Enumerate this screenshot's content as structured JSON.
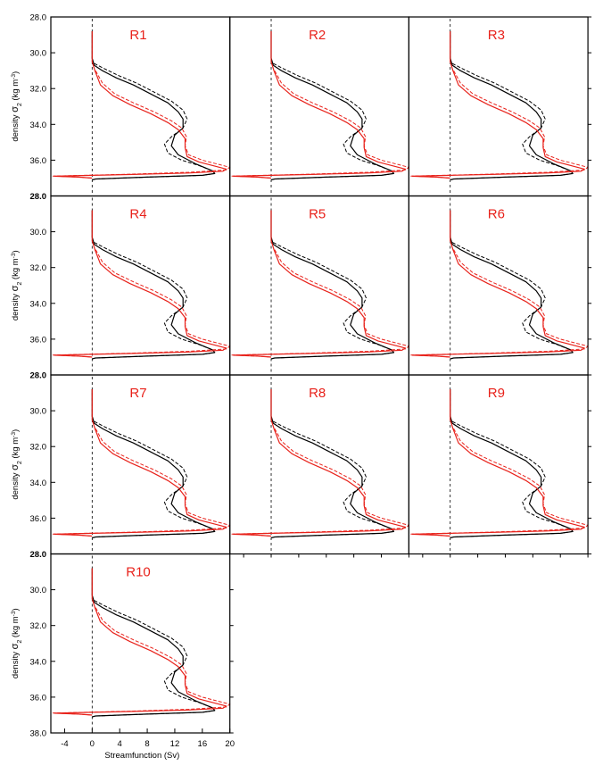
{
  "chart_data": {
    "type": "line",
    "layout": "panel grid, 3 columns, 4 rows, shared axes",
    "ylabel_text": "density ",
    "ylabel_sigma": "σ",
    "ylabel_sub": "2",
    "ylabel_unit_a": " (kg m",
    "ylabel_unit_sup": "-3",
    "ylabel_unit_b": ")",
    "xlabel": "Streamfunction (Sv)",
    "xlim": [
      -6,
      20
    ],
    "ylim": [
      28.0,
      38.0
    ],
    "y_reversed": true,
    "xticks": [
      -4,
      0,
      4,
      8,
      12,
      16,
      20
    ],
    "xtick_labels": [
      "-4",
      "0",
      "4",
      "8",
      "12",
      "16",
      "20"
    ],
    "yticks": [
      28.0,
      30.0,
      32.0,
      34.0,
      36.0,
      38.0
    ],
    "ytick_labels": [
      "28.0",
      "30.0",
      "32.0",
      "34.0",
      "36.0",
      "38.0"
    ],
    "zero_reference_line": {
      "x": 0,
      "style": "dashed",
      "color": "#000000"
    },
    "series_styles": [
      {
        "id": "black-solid",
        "color": "#000000",
        "dash": "solid"
      },
      {
        "id": "black-dashed",
        "color": "#000000",
        "dash": "dashed"
      },
      {
        "id": "red-solid",
        "color": "#e8221b",
        "dash": "solid"
      },
      {
        "id": "red-dashed",
        "color": "#e8221b",
        "dash": "dashed"
      }
    ],
    "series": [
      {
        "style": "black-solid",
        "x": [
          0,
          0,
          0,
          0.3,
          1.5,
          3.5,
          6,
          8.5,
          11,
          12.5,
          13.2,
          13.2,
          12,
          11.5,
          12.5,
          15,
          17.5,
          17.8,
          16,
          8,
          0.5,
          0
        ],
        "y": [
          28.8,
          29.5,
          30.3,
          30.7,
          31.0,
          31.4,
          31.8,
          32.3,
          32.8,
          33.3,
          33.7,
          34.2,
          34.6,
          35.2,
          35.7,
          36.2,
          36.6,
          36.75,
          36.85,
          36.95,
          37.05,
          37.1
        ]
      },
      {
        "style": "black-dashed",
        "x": [
          0.3,
          1.8,
          4,
          6.5,
          9,
          11.5,
          13.2,
          13.8,
          13.2,
          11.5,
          10.5,
          11,
          13,
          15.5,
          17.5,
          17.8,
          16,
          8,
          0.5
        ],
        "y": [
          30.6,
          30.9,
          31.3,
          31.7,
          32.2,
          32.7,
          33.2,
          33.7,
          34.2,
          34.7,
          35.1,
          35.6,
          36.0,
          36.3,
          36.6,
          36.75,
          36.85,
          36.95,
          37.05
        ]
      },
      {
        "style": "red-solid",
        "x": [
          0,
          0,
          0,
          0.4,
          1.2,
          3,
          5.5,
          8.5,
          11,
          12.5,
          13.5,
          13.5,
          13.8,
          15.5,
          18,
          19.5,
          19.0,
          14,
          6,
          0,
          -5.5,
          -2,
          0
        ],
        "y": [
          28.8,
          29.5,
          30.5,
          31.0,
          31.8,
          32.4,
          32.9,
          33.4,
          33.9,
          34.3,
          34.8,
          35.3,
          35.8,
          36.1,
          36.35,
          36.5,
          36.62,
          36.72,
          36.8,
          36.85,
          36.9,
          36.95,
          37.0
        ]
      },
      {
        "style": "red-dashed",
        "x": [
          0.5,
          1.5,
          3.3,
          6,
          9,
          11.5,
          13,
          13.7,
          13.5,
          14,
          16,
          18.5,
          20,
          19.5,
          14,
          6,
          0,
          -5.7,
          -2,
          0
        ],
        "y": [
          31.0,
          31.7,
          32.3,
          32.8,
          33.3,
          33.8,
          34.2,
          34.7,
          35.2,
          35.7,
          36.0,
          36.25,
          36.4,
          36.55,
          36.68,
          36.78,
          36.84,
          36.89,
          36.95,
          37.0
        ]
      }
    ],
    "panels": [
      {
        "title": "R1",
        "row": 0,
        "col": 0
      },
      {
        "title": "R2",
        "row": 0,
        "col": 1
      },
      {
        "title": "R3",
        "row": 0,
        "col": 2
      },
      {
        "title": "R4",
        "row": 1,
        "col": 0
      },
      {
        "title": "R5",
        "row": 1,
        "col": 1
      },
      {
        "title": "R6",
        "row": 1,
        "col": 2
      },
      {
        "title": "R7",
        "row": 2,
        "col": 0
      },
      {
        "title": "R8",
        "row": 2,
        "col": 1
      },
      {
        "title": "R9",
        "row": 2,
        "col": 2
      },
      {
        "title": "R10",
        "row": 3,
        "col": 0
      }
    ]
  }
}
